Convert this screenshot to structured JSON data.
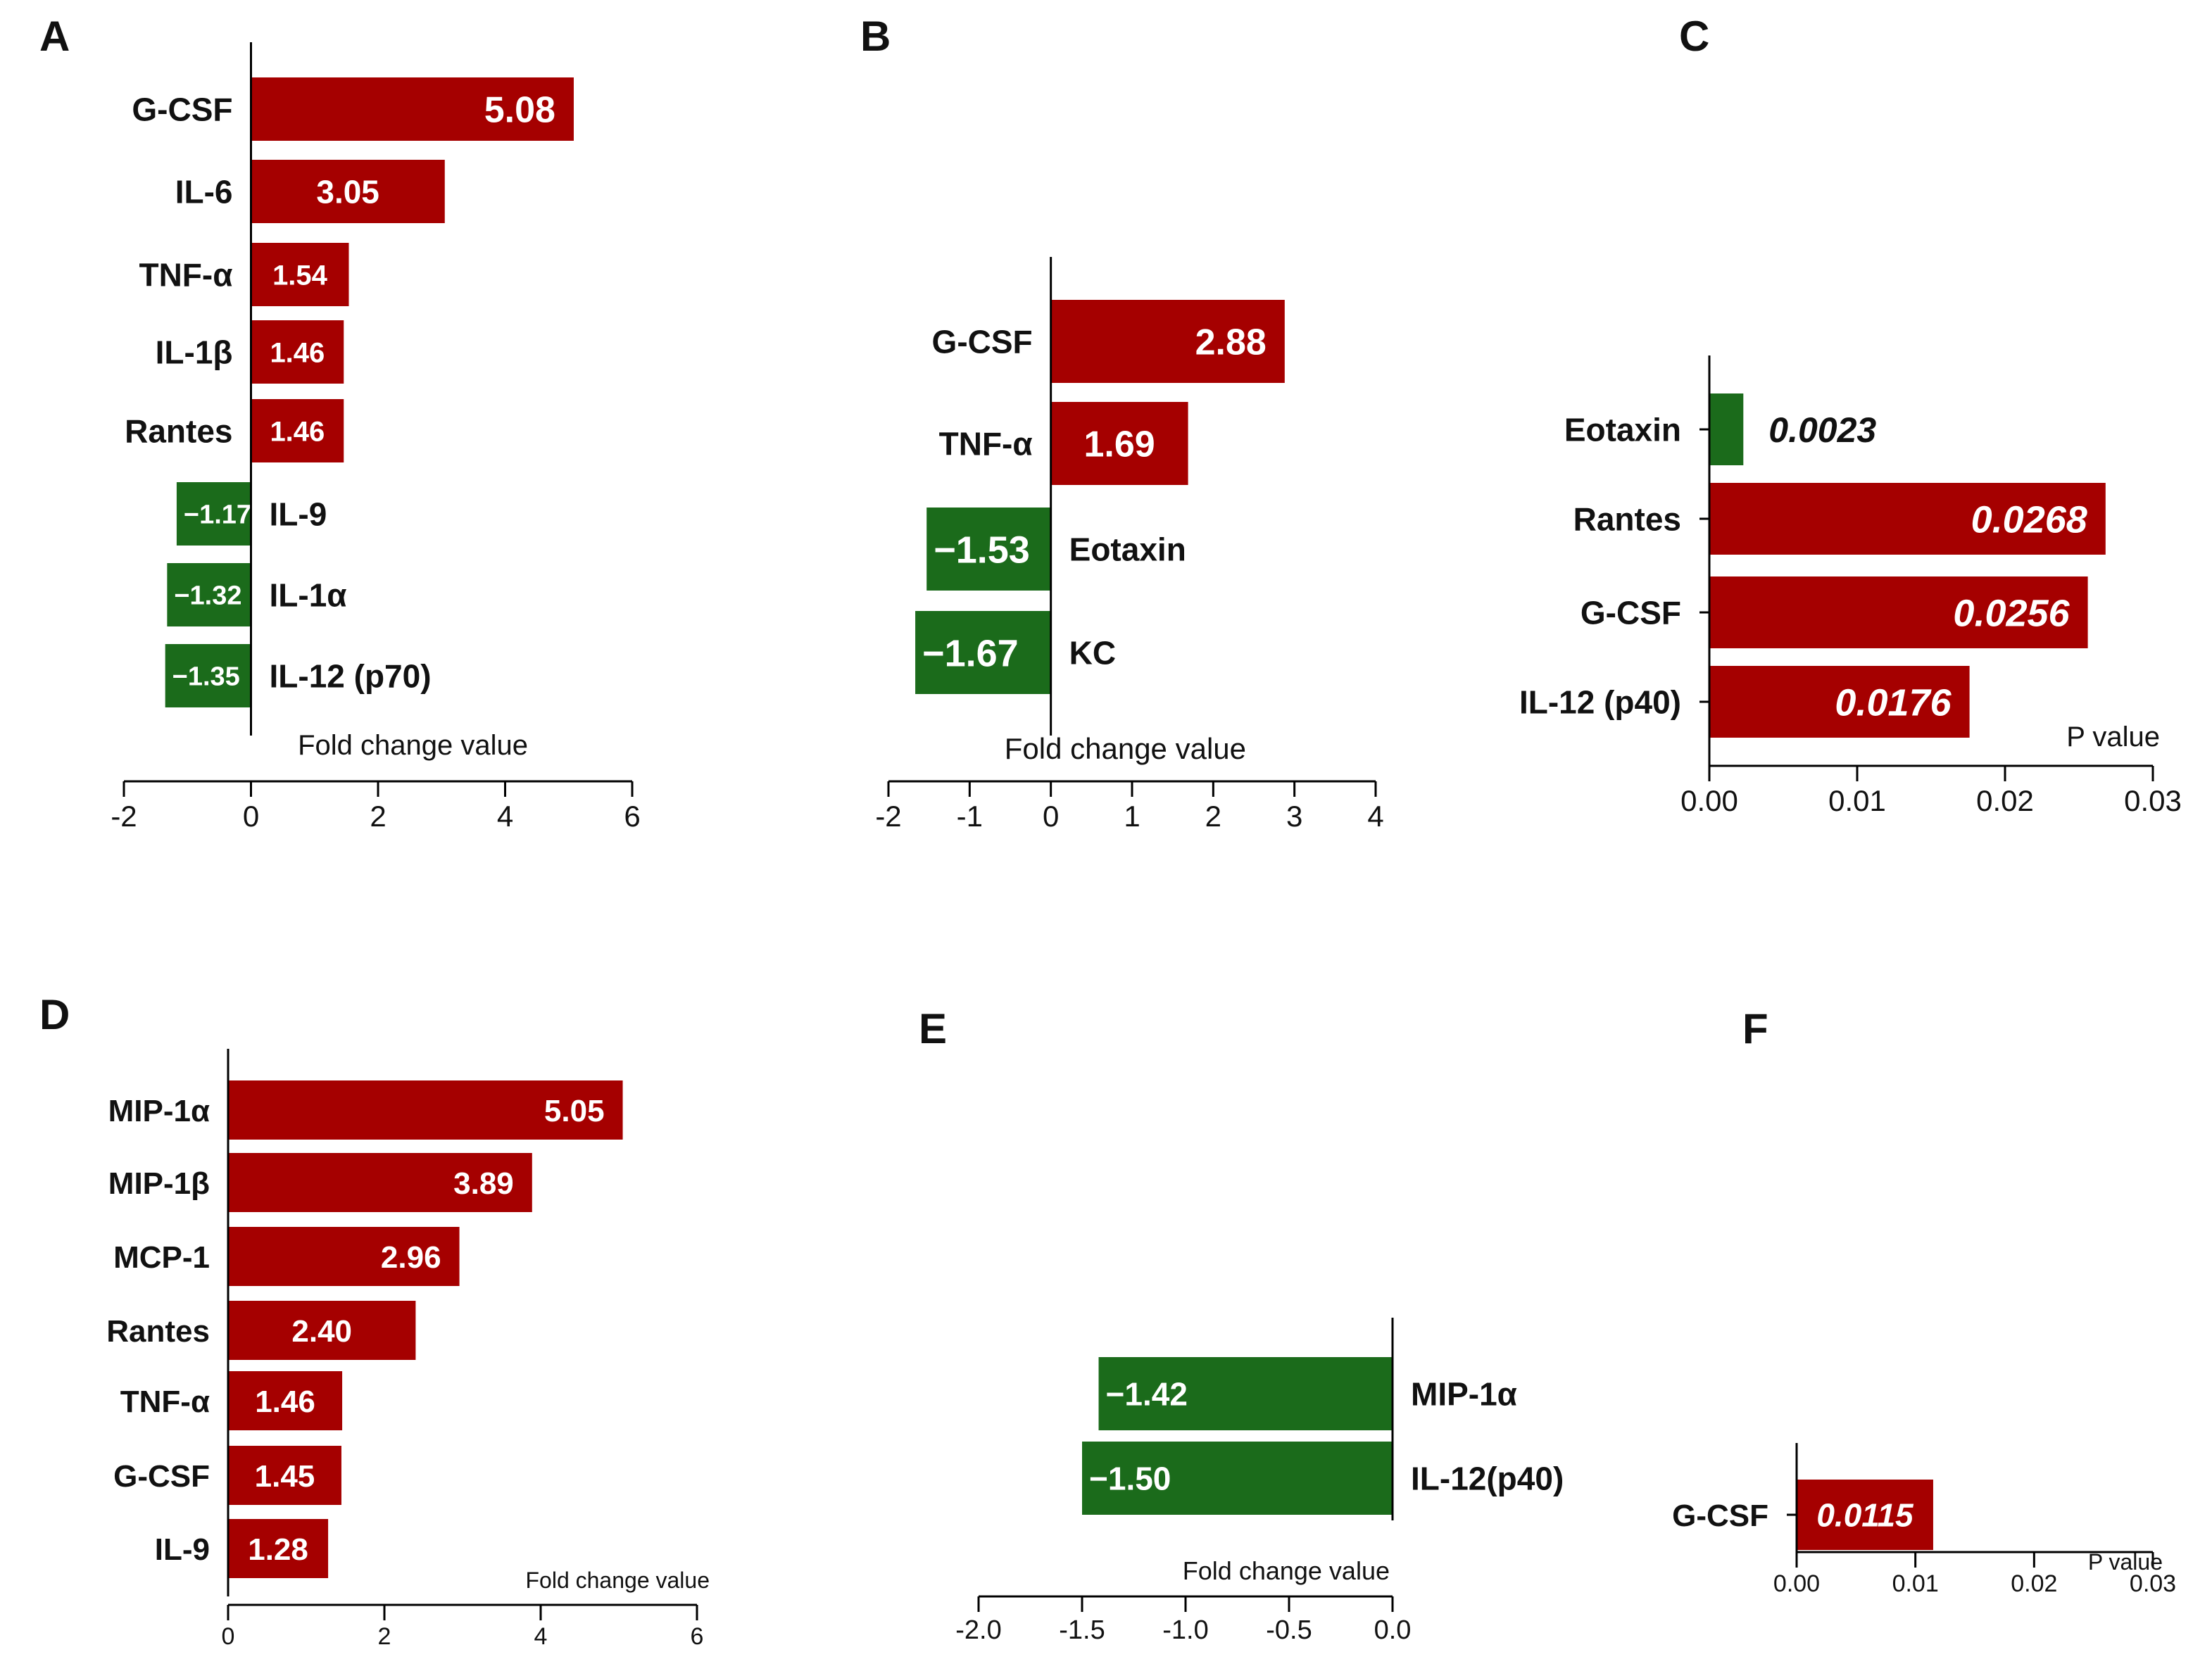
{
  "chart_data": [
    {
      "panel": "A",
      "type": "bar",
      "orientation": "horizontal",
      "xlabel": "Fold change value",
      "xlim": [
        -2,
        6
      ],
      "xticks": [
        "-2",
        "0",
        "2",
        "4",
        "6"
      ],
      "categories": [
        "G-CSF",
        "IL-6",
        "TNF-α",
        "IL-1β",
        "Rantes",
        "IL-9",
        "IL-1α",
        "IL-12 (p70)"
      ],
      "values": [
        5.08,
        3.05,
        1.54,
        1.46,
        1.46,
        -1.17,
        -1.32,
        -1.35
      ],
      "value_labels": [
        "5.08",
        "3.05",
        "1.54",
        "1.46",
        "1.46",
        "−1.17",
        "−1.32",
        "−1.35"
      ]
    },
    {
      "panel": "B",
      "type": "bar",
      "orientation": "horizontal",
      "xlabel": "Fold change value",
      "xlim": [
        -2,
        4
      ],
      "xticks": [
        "-2",
        "-1",
        "0",
        "1",
        "2",
        "3",
        "4"
      ],
      "categories": [
        "G-CSF",
        "TNF-α",
        "Eotaxin",
        "KC"
      ],
      "values": [
        2.88,
        1.69,
        -1.53,
        -1.67
      ],
      "value_labels": [
        "2.88",
        "1.69",
        "−1.53",
        "−1.67"
      ]
    },
    {
      "panel": "C",
      "type": "bar",
      "orientation": "horizontal",
      "xlabel": "P value",
      "xlim": [
        0,
        0.03
      ],
      "xticks": [
        "0.00",
        "0.01",
        "0.02",
        "0.03"
      ],
      "categories": [
        "Eotaxin",
        "Rantes",
        "G-CSF",
        "IL-12 (p40)"
      ],
      "values": [
        0.0023,
        0.0268,
        0.0256,
        0.0176
      ],
      "value_labels": [
        "0.0023",
        "0.0268",
        "0.0256",
        "0.0176"
      ],
      "bar_colors": [
        "#1b6b1b",
        "#a50000",
        "#a50000",
        "#a50000"
      ]
    },
    {
      "panel": "D",
      "type": "bar",
      "orientation": "horizontal",
      "xlabel": "Fold change value",
      "xlim": [
        0,
        6
      ],
      "xticks": [
        "0",
        "2",
        "4",
        "6"
      ],
      "categories": [
        "MIP-1α",
        "MIP-1β",
        "MCP-1",
        "Rantes",
        "TNF-α",
        "G-CSF",
        "IL-9"
      ],
      "values": [
        5.05,
        3.89,
        2.96,
        2.4,
        1.46,
        1.45,
        1.28
      ],
      "value_labels": [
        "5.05",
        "3.89",
        "2.96",
        "2.40",
        "1.46",
        "1.45",
        "1.28"
      ]
    },
    {
      "panel": "E",
      "type": "bar",
      "orientation": "horizontal",
      "xlabel": "Fold change value",
      "xlim": [
        -2.0,
        0.0
      ],
      "xticks": [
        "-2.0",
        "-1.5",
        "-1.0",
        "-0.5",
        "0.0"
      ],
      "categories": [
        "MIP-1α",
        "IL-12(p40)"
      ],
      "values": [
        -1.42,
        -1.5
      ],
      "value_labels": [
        "−1.42",
        "−1.50"
      ]
    },
    {
      "panel": "F",
      "type": "bar",
      "orientation": "horizontal",
      "xlabel": "P value",
      "xlim": [
        0,
        0.03
      ],
      "xticks": [
        "0.00",
        "0.01",
        "0.02",
        "0.03"
      ],
      "categories": [
        "G-CSF"
      ],
      "values": [
        0.0115
      ],
      "value_labels": [
        "0.0115"
      ],
      "bar_colors": [
        "#a50000"
      ]
    }
  ],
  "colors": {
    "positive": "#a50000",
    "negative": "#1b6b1b",
    "axis": "#000000",
    "text": "#111111"
  }
}
